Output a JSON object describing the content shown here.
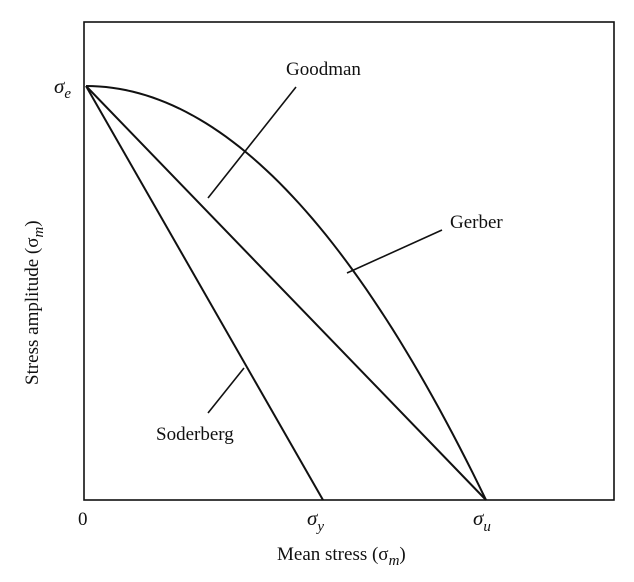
{
  "labels": {
    "goodman": "Goodman",
    "gerber": "Gerber",
    "soderberg": "Soderberg"
  },
  "axes": {
    "x_title": "Mean stress (σm)",
    "x_title_main": "Mean stress (σ",
    "x_title_sub": "m",
    "x_title_close": ")",
    "y_title_main": "Stress amplitude (σ",
    "y_title_sub": "m",
    "y_title_close": ")",
    "origin": "0"
  },
  "symbols": {
    "sigma": "σ",
    "e": "e",
    "y": "y",
    "u": "u"
  }
}
